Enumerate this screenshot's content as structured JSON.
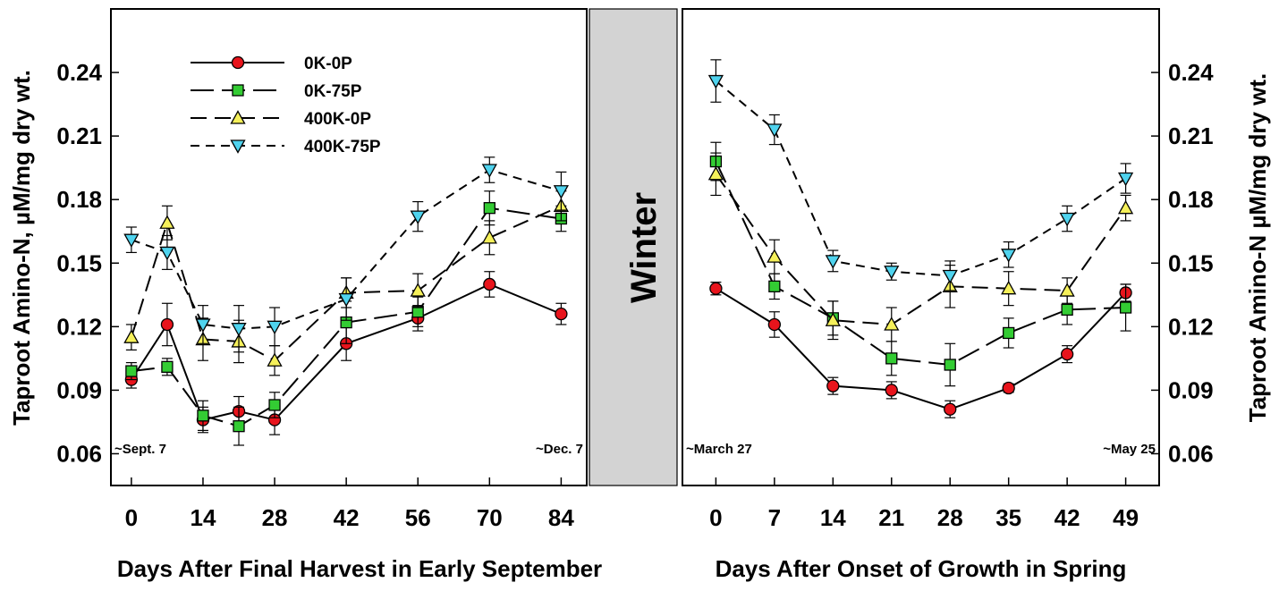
{
  "chart_data": {
    "type": "line",
    "ylabel_left": "Taproot Amino-N, µM/mg dry wt.",
    "ylabel_right": "Taproot Amino-N µM/mg dry wt.",
    "ylim": [
      0.045,
      0.27
    ],
    "yticks": [
      "0.06",
      "0.09",
      "0.12",
      "0.15",
      "0.18",
      "0.21",
      "0.24"
    ],
    "ytick_values": [
      0.06,
      0.09,
      0.12,
      0.15,
      0.18,
      0.21,
      0.24
    ],
    "winter_label": "Winter",
    "legend": [
      {
        "name": "0K-0P",
        "marker": "circle",
        "color": "#e8141c",
        "dash": "none"
      },
      {
        "name": "0K-75P",
        "marker": "square",
        "color": "#33cc33",
        "dash": "long"
      },
      {
        "name": "400K-0P",
        "marker": "triangle-up",
        "color": "#f5f05a",
        "dash": "medium"
      },
      {
        "name": "400K-75P",
        "marker": "triangle-down",
        "color": "#4fd3ee",
        "dash": "short"
      }
    ],
    "panels": [
      {
        "xlabel": "Days After Final Harvest in Early September",
        "xlim": [
          -4,
          89
        ],
        "xticks": [
          "0",
          "14",
          "28",
          "42",
          "56",
          "70",
          "84"
        ],
        "xtick_values": [
          0,
          14,
          28,
          42,
          56,
          70,
          84
        ],
        "note_left": "~Sept. 7",
        "note_right": "~Dec. 7",
        "x": [
          0,
          7,
          14,
          21,
          28,
          42,
          56,
          70,
          84
        ],
        "series": [
          {
            "name": "0K-0P",
            "values": [
              0.095,
              0.121,
              0.076,
              0.08,
              0.076,
              0.112,
              0.124,
              0.14,
              0.126
            ],
            "errors": [
              0.004,
              0.01,
              0.006,
              0.007,
              0.007,
              0.008,
              0.006,
              0.006,
              0.005
            ]
          },
          {
            "name": "0K-75P",
            "values": [
              0.099,
              0.101,
              0.078,
              0.073,
              0.083,
              0.122,
              0.127,
              0.176,
              0.171
            ],
            "errors": [
              0.004,
              0.004,
              0.007,
              0.009,
              0.006,
              0.01,
              0.007,
              0.008,
              0.006
            ]
          },
          {
            "name": "400K-0P",
            "values": [
              0.115,
              0.169,
              0.114,
              0.113,
              0.104,
              0.136,
              0.137,
              0.162,
              0.177
            ],
            "errors": [
              0.006,
              0.008,
              0.01,
              0.01,
              0.007,
              0.007,
              0.008,
              0.008,
              0.007
            ]
          },
          {
            "name": "400K-75P",
            "values": [
              0.161,
              0.155,
              0.121,
              0.119,
              0.12,
              0.133,
              0.172,
              0.194,
              0.184
            ],
            "errors": [
              0.006,
              0.008,
              0.009,
              0.011,
              0.009,
              0.01,
              0.007,
              0.006,
              0.009
            ]
          }
        ]
      },
      {
        "xlabel": "Days After Onset of Growth in Spring",
        "xlim": [
          -4,
          53
        ],
        "xticks": [
          "0",
          "7",
          "14",
          "21",
          "28",
          "35",
          "42",
          "49"
        ],
        "xtick_values": [
          0,
          7,
          14,
          21,
          28,
          35,
          42,
          49
        ],
        "note_left": "~March 27",
        "note_right": "~May 25",
        "x": [
          0,
          7,
          14,
          21,
          28,
          35,
          42,
          49
        ],
        "series": [
          {
            "name": "0K-0P",
            "values": [
              0.138,
              0.121,
              0.092,
              0.09,
              0.081,
              0.091,
              0.107,
              0.136
            ],
            "errors": [
              0.003,
              0.006,
              0.004,
              0.004,
              0.004,
              0.002,
              0.004,
              0.004
            ]
          },
          {
            "name": "0K-75P",
            "values": [
              0.198,
              0.139,
              0.124,
              0.105,
              0.102,
              0.117,
              0.128,
              0.129
            ],
            "errors": [
              0.009,
              0.006,
              0.008,
              0.008,
              0.01,
              0.007,
              0.007,
              0.011
            ]
          },
          {
            "name": "400K-0P",
            "values": [
              0.192,
              0.153,
              0.123,
              0.121,
              0.139,
              0.138,
              0.137,
              0.176
            ],
            "errors": [
              0.01,
              0.008,
              0.009,
              0.008,
              0.01,
              0.008,
              0.006,
              0.006
            ]
          },
          {
            "name": "400K-75P",
            "values": [
              0.236,
              0.213,
              0.151,
              0.146,
              0.144,
              0.154,
              0.171,
              0.19
            ],
            "errors": [
              0.01,
              0.007,
              0.005,
              0.004,
              0.007,
              0.006,
              0.006,
              0.007
            ]
          }
        ]
      }
    ]
  }
}
